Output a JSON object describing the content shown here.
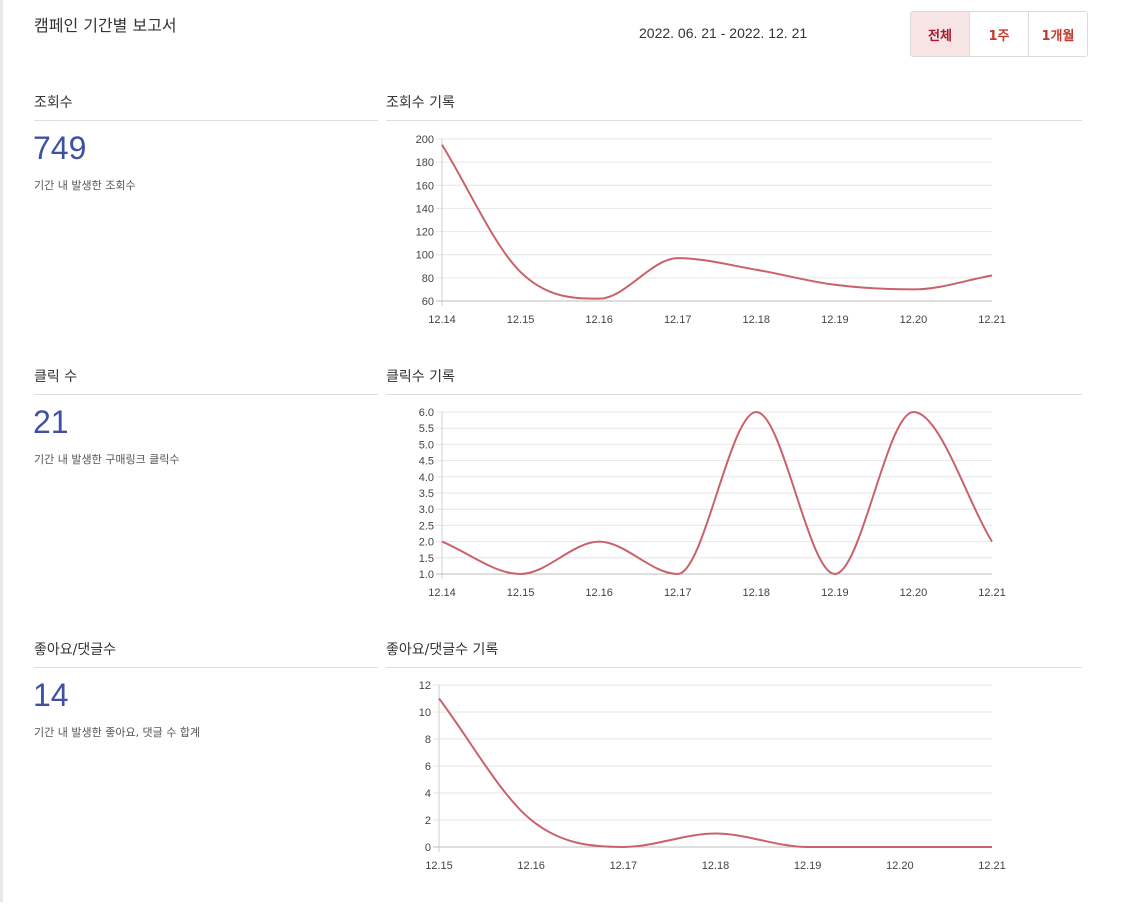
{
  "header": {
    "title": "캠페인 기간별 보고서",
    "date_range": "2022. 06. 21 - 2022. 12. 21",
    "periods": [
      "전체",
      "1주",
      "1개월"
    ],
    "active_period": "전체"
  },
  "metrics": {
    "views": {
      "label": "조회수",
      "value": "749",
      "desc": "기간 내 발생한 조회수",
      "chart_title": "조회수 기록"
    },
    "clicks": {
      "label": "클릭 수",
      "value": "21",
      "desc": "기간 내 발생한 구매링크 클릭수",
      "chart_title": "클릭수 기록"
    },
    "likes": {
      "label": "좋아요/댓글수",
      "value": "14",
      "desc": "기간 내 발생한 좋아요, 댓글 수 합계",
      "chart_title": "좋아요/댓글수 기록"
    }
  },
  "colors": {
    "line": "#c9626a",
    "value": "#3f51a5",
    "accent": "#c0392b",
    "active_bg": "#f7e4e4",
    "grid": "#e6e6e6"
  },
  "chart_data": [
    {
      "type": "line",
      "title": "조회수 기록",
      "x": [
        "12.14",
        "12.15",
        "12.16",
        "12.17",
        "12.18",
        "12.19",
        "12.20",
        "12.21"
      ],
      "values": [
        195,
        85,
        62,
        97,
        87,
        74,
        70,
        82
      ],
      "ylim": [
        60,
        200
      ],
      "yticks": [
        "60",
        "80",
        "100",
        "120",
        "140",
        "160",
        "180",
        "200"
      ],
      "grid": true
    },
    {
      "type": "line",
      "title": "클릭수 기록",
      "x": [
        "12.14",
        "12.15",
        "12.16",
        "12.17",
        "12.18",
        "12.19",
        "12.20",
        "12.21"
      ],
      "values": [
        2,
        1,
        2,
        1,
        6,
        1,
        6,
        2
      ],
      "ylim": [
        1,
        6
      ],
      "yticks": [
        "1.0",
        "1.5",
        "2.0",
        "2.5",
        "3.0",
        "3.5",
        "4.0",
        "4.5",
        "5.0",
        "5.5",
        "6.0"
      ],
      "grid": true
    },
    {
      "type": "line",
      "title": "좋아요/댓글수 기록",
      "x": [
        "12.15",
        "12.16",
        "12.17",
        "12.18",
        "12.19",
        "12.20",
        "12.21"
      ],
      "values": [
        11,
        2,
        0,
        1,
        0,
        0,
        0
      ],
      "ylim": [
        0,
        12
      ],
      "yticks": [
        "0",
        "2",
        "4",
        "6",
        "8",
        "10",
        "12"
      ],
      "grid": true
    }
  ]
}
